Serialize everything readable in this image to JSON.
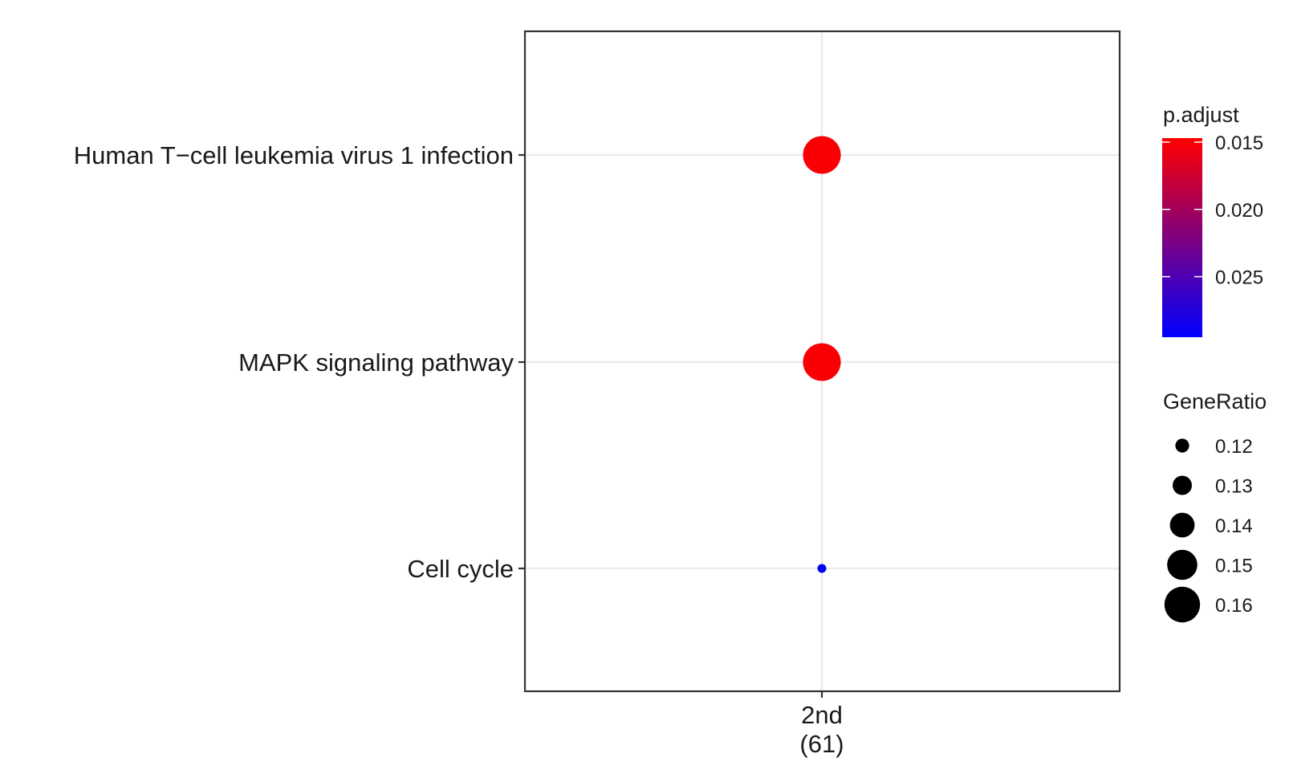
{
  "chart_data": {
    "type": "scatter",
    "subtype": "dot-plot",
    "categories_y": [
      "Human T−cell leukemia virus 1 infection",
      "MAPK signaling pathway",
      "Cell cycle"
    ],
    "categories_x": [
      {
        "line1": "2nd",
        "line2": "(61)"
      }
    ],
    "points": [
      {
        "x": "2nd",
        "y": "Human T−cell leukemia virus 1 infection",
        "gene_ratio": 0.164,
        "p_adjust": 0.015
      },
      {
        "x": "2nd",
        "y": "MAPK signaling pathway",
        "gene_ratio": 0.164,
        "p_adjust": 0.015
      },
      {
        "x": "2nd",
        "y": "Cell cycle",
        "gene_ratio": 0.115,
        "p_adjust": 0.0294
      }
    ],
    "title": "",
    "xlabel": "",
    "ylabel": "",
    "grid": true,
    "legend_position": "right",
    "color_legend": {
      "title": "p.adjust",
      "ticks": [
        "0.015",
        "0.020",
        "0.025"
      ],
      "tick_values": [
        0.015,
        0.02,
        0.025
      ],
      "range": [
        0.0147,
        0.0295
      ],
      "low_color": "#ff0000",
      "high_color": "#0000ff",
      "reversed": true
    },
    "size_legend": {
      "title": "GeneRatio",
      "entries": [
        {
          "label": "0.12",
          "value": 0.12
        },
        {
          "label": "0.13",
          "value": 0.13
        },
        {
          "label": "0.14",
          "value": 0.14
        },
        {
          "label": "0.15",
          "value": 0.15
        },
        {
          "label": "0.16",
          "value": 0.16
        }
      ]
    },
    "colors": {
      "grid": "#ebebeb",
      "border": "#333333",
      "legend_marker": "#000000"
    }
  }
}
